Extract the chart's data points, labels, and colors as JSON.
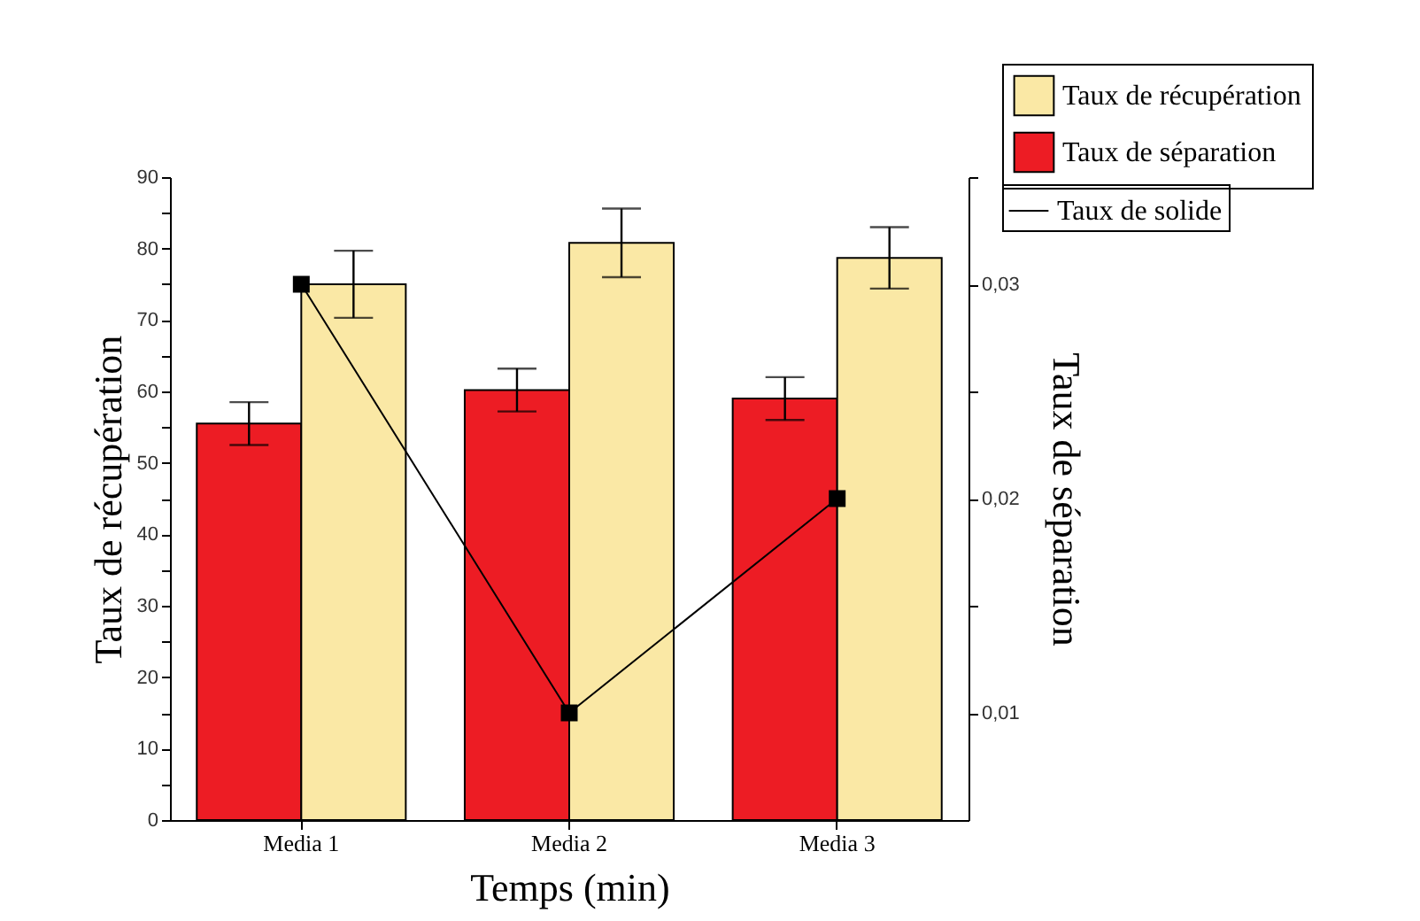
{
  "chart_data": {
    "type": "bar",
    "xlabel": "Temps (min)",
    "ylabel": "Taux de récupération",
    "y2label": "Taux de séparation",
    "categories": [
      "Media 1",
      "Media 2",
      "Media 3"
    ],
    "series": [
      {
        "name": "Taux de séparation",
        "color": "#ed1c24",
        "values": [
          55.5,
          60.2,
          59
        ],
        "errors": [
          3,
          3,
          3
        ]
      },
      {
        "name": "Taux de récupération",
        "color": "#fae8a5",
        "values": [
          75,
          80.8,
          78.7
        ],
        "errors": [
          4.7,
          4.8,
          4.3
        ]
      },
      {
        "name": "Taux de solide",
        "type": "line",
        "axis": "y2",
        "color": "#000000",
        "values": [
          0.03,
          0.01,
          0.02
        ]
      }
    ],
    "ylim": [
      0,
      90
    ],
    "yticks": [
      0,
      {
        "value": 5,
        "label": null
      },
      10,
      {
        "value": 15,
        "label": null
      },
      20,
      {
        "value": 25,
        "label": null
      },
      30,
      {
        "value": 35,
        "label": null
      },
      40,
      {
        "value": 45,
        "label": null
      },
      50,
      {
        "value": 55,
        "label": null
      },
      60,
      {
        "value": 65,
        "label": null
      },
      70,
      {
        "value": 75,
        "label": null
      },
      80,
      {
        "value": 85,
        "label": null
      },
      90
    ],
    "y2lim": [
      0.005,
      0.035
    ],
    "y2ticks": [
      {
        "value": 0.01,
        "label": "0,01"
      },
      {
        "value": 0.015,
        "label": null
      },
      {
        "value": 0.02,
        "label": "0,02"
      },
      {
        "value": 0.025,
        "label": null
      },
      {
        "value": 0.03,
        "label": "0,03"
      },
      {
        "value": 0.035,
        "label": null
      }
    ],
    "legend": "top right",
    "marker": "square",
    "line_style": "solid"
  }
}
